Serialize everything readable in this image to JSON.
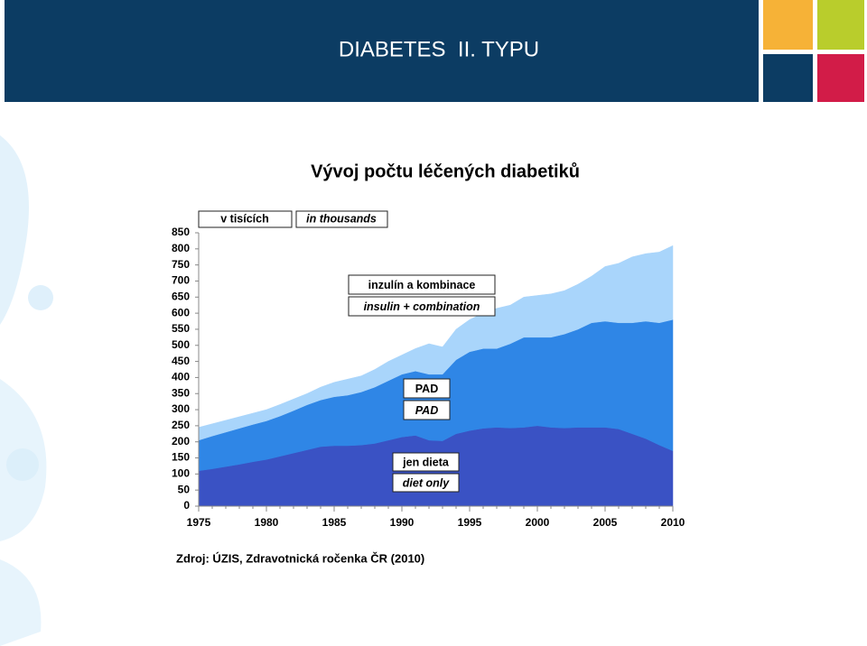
{
  "header": {
    "title": "DIABETES  II. TYPU"
  },
  "chart_data": {
    "type": "stacked-area",
    "title": "Vývoj počtu léčených diabetiků",
    "unit_label": "v tisících",
    "unit_label_en": "in thousands",
    "x": [
      1975,
      1976,
      1977,
      1978,
      1979,
      1980,
      1981,
      1982,
      1983,
      1984,
      1985,
      1986,
      1987,
      1988,
      1989,
      1990,
      1991,
      1992,
      1993,
      1994,
      1995,
      1996,
      1997,
      1998,
      1999,
      2000,
      2001,
      2002,
      2003,
      2004,
      2005,
      2006,
      2007,
      2008,
      2009,
      2010
    ],
    "xlim": [
      1975,
      2010
    ],
    "xticks": [
      1975,
      1980,
      1985,
      1990,
      1995,
      2000,
      2005,
      2010
    ],
    "ylim": [
      0,
      850
    ],
    "yticks": [
      0,
      50,
      100,
      150,
      200,
      250,
      300,
      350,
      400,
      450,
      500,
      550,
      600,
      650,
      700,
      750,
      800,
      850
    ],
    "series": [
      {
        "name": "jen dieta",
        "name_en": "diet only",
        "color": "#3a52c4",
        "values": [
          110,
          116,
          123,
          130,
          138,
          145,
          155,
          165,
          175,
          185,
          188,
          188,
          190,
          195,
          205,
          215,
          220,
          205,
          203,
          225,
          235,
          242,
          245,
          243,
          245,
          250,
          245,
          243,
          245,
          245,
          245,
          240,
          225,
          210,
          190,
          172
        ]
      },
      {
        "name": "PAD",
        "name_en": "PAD",
        "color": "#2f86e6",
        "values": [
          95,
          102,
          107,
          112,
          116,
          120,
          125,
          132,
          140,
          145,
          152,
          157,
          165,
          175,
          185,
          195,
          200,
          205,
          207,
          230,
          245,
          248,
          245,
          262,
          280,
          275,
          280,
          292,
          305,
          325,
          330,
          330,
          345,
          365,
          380,
          408
        ]
      },
      {
        "name": "inzulín a kombinace",
        "name_en": "insulin + combination",
        "color": "#a9d5fb",
        "values": [
          40,
          38,
          37,
          36,
          35,
          35,
          36,
          36,
          35,
          40,
          45,
          50,
          50,
          55,
          60,
          60,
          70,
          95,
          85,
          95,
          100,
          110,
          125,
          120,
          125,
          130,
          135,
          135,
          140,
          145,
          170,
          185,
          205,
          210,
          220,
          230
        ]
      }
    ],
    "source": "Zdroj: ÚZIS, Zdravotnická ročenka ČR (2010)"
  }
}
